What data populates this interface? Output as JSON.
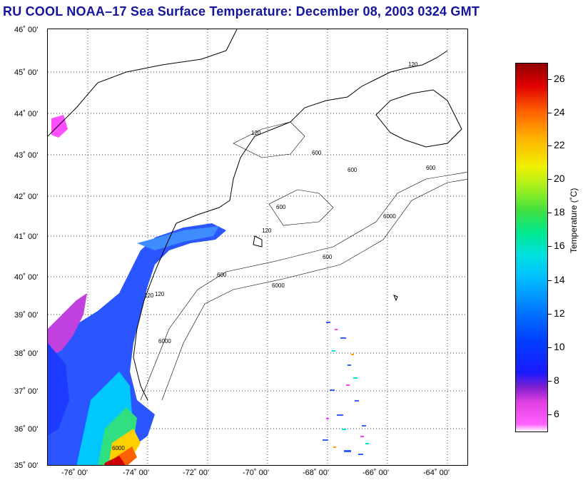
{
  "title": "RU COOL  NOAA–17  Sea Surface Temperature:  December 08, 2003 0324 GMT",
  "map": {
    "lat_labels": [
      "46˚ 00'",
      "45˚ 00'",
      "44˚ 00'",
      "43˚ 00'",
      "42˚ 00'",
      "41˚ 00'",
      "40˚ 00'",
      "39˚ 00'",
      "38˚ 00'",
      "37˚ 00'",
      "36˚ 00'",
      "35˚ 00'"
    ],
    "lon_labels": [
      "-76˚ 00'",
      "-74˚ 00'",
      "-72˚ 00'",
      "-70˚ 00'",
      "-68˚ 00'",
      "-66˚ 00'",
      "-64˚ 00'"
    ],
    "isobath_labels": [
      "120",
      "120",
      "600",
      "600",
      "6000",
      "600",
      "6000",
      "600",
      "120",
      "120",
      "6000",
      "600",
      "6000",
      "600",
      "120"
    ]
  },
  "colorbar": {
    "title": "Temperature (˚C)",
    "ticks": [
      "26",
      "24",
      "22",
      "20",
      "18",
      "16",
      "14",
      "12",
      "10",
      "8",
      "6"
    ],
    "range": [
      5,
      27
    ]
  }
}
